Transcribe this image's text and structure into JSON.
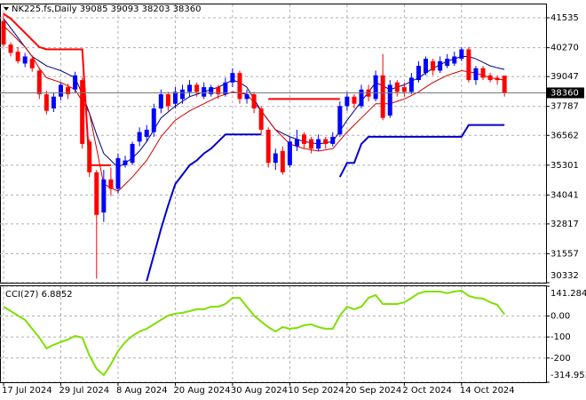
{
  "chart_data": [
    {
      "type": "candlestick",
      "title": "NK225.fs,Daily 39085 39093 38203 38360",
      "categories": [
        "17 Jul 2024",
        null,
        null,
        null,
        null,
        null,
        null,
        null,
        "29 Jul 2024",
        null,
        null,
        null,
        null,
        null,
        null,
        null,
        "8 Aug 2024",
        null,
        null,
        null,
        null,
        null,
        null,
        null,
        "20 Aug 2024",
        null,
        null,
        null,
        null,
        null,
        null,
        null,
        "30 Aug 2024",
        null,
        null,
        null,
        null,
        null,
        null,
        null,
        "10 Sep 2024",
        null,
        null,
        null,
        null,
        null,
        null,
        null,
        "20 Sep 2024",
        null,
        null,
        null,
        null,
        null,
        null,
        null,
        "2 Oct 2024",
        null,
        null,
        null,
        null,
        null,
        null,
        null,
        "14 Oct 2024",
        null,
        null,
        null,
        null,
        null,
        null
      ],
      "open": [
        41400,
        40400,
        40100,
        39600,
        39800,
        39300,
        38300,
        37700,
        38200,
        38600,
        38500,
        38900,
        36300,
        35000,
        33300,
        34700,
        34300,
        35300,
        35400,
        36300,
        36500,
        36700,
        37700,
        38300,
        37900,
        38100,
        38400,
        38700,
        38200,
        38300,
        38600,
        38300,
        38800,
        39200,
        38100,
        38300,
        37700,
        36800,
        35400,
        35900,
        35300,
        36100,
        36600,
        36400,
        36000,
        36400,
        36200,
        36600,
        37800,
        38200,
        37800,
        38500,
        38100,
        39100,
        37400,
        38800,
        38600,
        38400,
        38900,
        39200,
        39700,
        39300,
        39500,
        39600,
        39800,
        40200,
        38900,
        39400,
        39100,
        39000,
        39085
      ],
      "high": [
        41750,
        40500,
        40300,
        40050,
        39950,
        39400,
        38450,
        38350,
        38800,
        38750,
        39250,
        39000,
        36400,
        35100,
        35100,
        35200,
        35800,
        35700,
        36300,
        36900,
        37000,
        37900,
        38500,
        38400,
        38600,
        38700,
        38900,
        38800,
        38800,
        38700,
        38700,
        39000,
        39400,
        39300,
        38500,
        38400,
        37800,
        36900,
        36000,
        36100,
        36500,
        36800,
        36700,
        36500,
        36600,
        36500,
        36700,
        38000,
        38400,
        38300,
        38700,
        38700,
        39300,
        40000,
        38900,
        38900,
        38800,
        39200,
        39700,
        39900,
        39800,
        39900,
        40000,
        40100,
        40300,
        40300,
        39500,
        39500,
        39200,
        39100,
        39093
      ],
      "low": [
        40300,
        39900,
        39600,
        39450,
        39250,
        38100,
        37450,
        37550,
        38050,
        38100,
        38350,
        36000,
        34800,
        30500,
        32900,
        34000,
        34100,
        35200,
        35300,
        36100,
        36300,
        36500,
        37500,
        37600,
        37700,
        37900,
        38200,
        38200,
        38100,
        38200,
        38100,
        38200,
        38600,
        37900,
        37900,
        37500,
        36600,
        35200,
        35100,
        34900,
        35200,
        35900,
        36000,
        35800,
        35900,
        36000,
        36100,
        36500,
        37600,
        37700,
        37700,
        38000,
        38000,
        37200,
        37300,
        38200,
        38200,
        38300,
        38800,
        39100,
        39100,
        39200,
        39400,
        39500,
        39700,
        38800,
        38700,
        38900,
        38800,
        38700,
        38203
      ],
      "close": [
        40400,
        40050,
        39700,
        39900,
        39400,
        38300,
        37600,
        38200,
        38700,
        38300,
        39100,
        36200,
        35000,
        33200,
        34700,
        34300,
        35600,
        35500,
        36200,
        36700,
        36800,
        37700,
        38300,
        37800,
        38400,
        38500,
        38700,
        38400,
        38600,
        38600,
        38300,
        38800,
        39200,
        38100,
        38300,
        37700,
        36800,
        35400,
        35800,
        35000,
        36300,
        36400,
        36200,
        36000,
        36400,
        36200,
        36500,
        37800,
        38200,
        37900,
        38500,
        38200,
        39100,
        37300,
        38700,
        38400,
        38400,
        39000,
        39500,
        39800,
        39300,
        39700,
        39800,
        39900,
        40200,
        38900,
        39400,
        39000,
        38900,
        38900,
        38360
      ],
      "up_color": "#0000ff",
      "down_color": "#ff0000",
      "last_price": 38360,
      "overlays": [
        {
          "color": "#00007f",
          "line_width": 1,
          "values": [
            41500,
            41100,
            40700,
            40300,
            39900,
            39700,
            39500,
            39400,
            39300,
            39150,
            39000,
            38300,
            37500,
            36600,
            35800,
            35500,
            35200,
            35400,
            35600,
            35900,
            36300,
            36800,
            37300,
            37550,
            37800,
            38000,
            38200,
            38300,
            38400,
            38500,
            38600,
            38750,
            38900,
            38800,
            38600,
            38100,
            37600,
            37200,
            36800,
            36650,
            36500,
            36400,
            36300,
            36250,
            36200,
            36250,
            36300,
            36750,
            37200,
            37600,
            38000,
            38400,
            38800,
            38650,
            38500,
            38600,
            38700,
            38850,
            39000,
            39200,
            39400,
            39550,
            39700,
            39800,
            39900,
            39900,
            39800,
            39650,
            39500,
            39420,
            39350
          ]
        },
        {
          "color": "#d00000",
          "line_width": 1,
          "values": [
            41200,
            40900,
            40600,
            40300,
            39900,
            39400,
            39000,
            38900,
            38800,
            38650,
            38500,
            38000,
            37500,
            36000,
            34500,
            34350,
            34200,
            34500,
            34800,
            35150,
            35500,
            36000,
            36500,
            36850,
            37200,
            37400,
            37600,
            37750,
            37900,
            38050,
            38200,
            38300,
            38400,
            38350,
            38300,
            37950,
            37600,
            37200,
            36800,
            36500,
            36200,
            36100,
            36000,
            35950,
            35900,
            35950,
            36000,
            36350,
            36700,
            37000,
            37300,
            37600,
            37900,
            37900,
            37900,
            38000,
            38100,
            38250,
            38400,
            38600,
            38800,
            38950,
            39100,
            39200,
            39300,
            39250,
            39200,
            39100,
            39000,
            38950,
            38900
          ]
        },
        {
          "color": "#ff0000",
          "line_width": 2,
          "values": [
            41700,
            41500,
            41200,
            40900,
            40600,
            40300,
            40200,
            40200,
            40200,
            40200,
            40200,
            40200,
            35300,
            35300,
            35300,
            35300,
            null,
            null,
            null,
            null,
            null,
            null,
            null,
            null,
            null,
            null,
            null,
            null,
            null,
            null,
            null,
            null,
            null,
            null,
            null,
            null,
            null,
            38100,
            38100,
            38100,
            38100,
            38100,
            38100,
            38100,
            38100,
            38100,
            38100,
            38100,
            null,
            null,
            null,
            null,
            null,
            null,
            null,
            null,
            null,
            null,
            null,
            null,
            null,
            null,
            null,
            null,
            null,
            null,
            null,
            null,
            null,
            null,
            null
          ]
        },
        {
          "color": "#0000cc",
          "line_width": 2,
          "values": [
            null,
            null,
            null,
            null,
            null,
            null,
            null,
            null,
            null,
            null,
            null,
            null,
            null,
            null,
            null,
            null,
            null,
            null,
            null,
            null,
            30400,
            31500,
            32600,
            33600,
            34500,
            34900,
            35300,
            35500,
            35800,
            36000,
            36300,
            36600,
            36600,
            36600,
            36600,
            36600,
            36600,
            null,
            null,
            null,
            null,
            null,
            null,
            null,
            null,
            null,
            null,
            34800,
            35400,
            35400,
            36200,
            36500,
            36500,
            36500,
            36500,
            36500,
            36500,
            36500,
            36500,
            36500,
            36500,
            36500,
            36500,
            36500,
            36500,
            37000,
            37000,
            37000,
            37000,
            37000,
            37000
          ]
        }
      ],
      "ylim": [
        30332,
        42099
      ],
      "yticks": [
        41535,
        40270,
        39047,
        37787,
        36562,
        35301,
        34041,
        32817,
        31557,
        30332
      ],
      "grid": true
    },
    {
      "type": "line",
      "title": "CCI(27) 6.8852",
      "color": "#7fe000",
      "values": [
        44,
        23,
        2,
        -19,
        -61,
        -103,
        -154,
        -137,
        -124,
        -112,
        -95,
        -103,
        -188,
        -251,
        -281,
        -230,
        -167,
        -124,
        -95,
        -74,
        -61,
        -40,
        -19,
        2,
        11,
        15,
        23,
        32,
        32,
        44,
        44,
        57,
        86,
        86,
        44,
        2,
        -27,
        -53,
        -74,
        -53,
        -61,
        -57,
        -44,
        -40,
        -53,
        -61,
        -61,
        2,
        44,
        32,
        44,
        86,
        99,
        57,
        57,
        57,
        65,
        86,
        108,
        116,
        116,
        116,
        108,
        116,
        120,
        95,
        86,
        82,
        65,
        53,
        6.8852
      ],
      "ylim": [
        -314.953,
        141.2847
      ],
      "yticks": [
        141.2847,
        {
          "value": 0,
          "label": "0.00"
        },
        -100,
        -200,
        {
          "value": -314.953,
          "label": "-314.9530"
        }
      ],
      "grid": true
    }
  ]
}
